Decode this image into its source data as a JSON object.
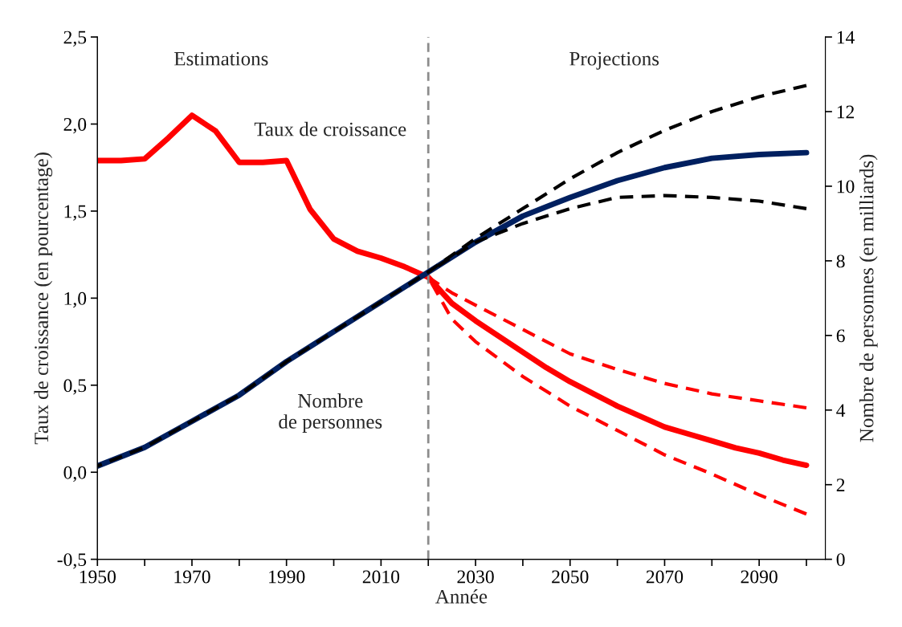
{
  "chart_data": {
    "type": "line",
    "xlabel": "Année",
    "ylabel": "Taux de croissance (en pourcentage)",
    "y2label": "Nombre de personnes (en milliards)",
    "xlim": [
      1950,
      2104
    ],
    "xticks": [
      1950,
      {
        "value": 1960,
        "label": null
      },
      1970,
      {
        "value": 1980,
        "label": null
      },
      1990,
      {
        "value": 2000,
        "label": null
      },
      2010,
      {
        "value": 2020,
        "label": null
      },
      2030,
      {
        "value": 2040,
        "label": null
      },
      2050,
      {
        "value": 2060,
        "label": null
      },
      2070,
      {
        "value": 2080,
        "label": null
      },
      2090,
      {
        "value": 2100,
        "label": null
      }
    ],
    "ylim": [
      -0.5,
      2.5
    ],
    "yticks": [
      {
        "value": -0.5,
        "label": "-0,5"
      },
      {
        "value": 0,
        "label": "0,0"
      },
      {
        "value": 0.5,
        "label": "0,5"
      },
      {
        "value": 1,
        "label": "1,0"
      },
      {
        "value": 1.5,
        "label": "1,5"
      },
      {
        "value": 2,
        "label": "2,0"
      },
      {
        "value": 2.5,
        "label": "2,5"
      }
    ],
    "y2lim": [
      0,
      14
    ],
    "y2ticks": [
      0,
      2,
      4,
      6,
      8,
      10,
      12,
      14
    ],
    "grid": false,
    "legend": false,
    "series": [
      {
        "color": "#ff0000",
        "line_style": "solid",
        "x": [
          1950,
          1955,
          1960,
          1965,
          1970,
          1975,
          1980,
          1985,
          1990,
          1995,
          2000,
          2005,
          2010,
          2015,
          2020,
          2025,
          2030,
          2035,
          2040,
          2045,
          2050,
          2055,
          2060,
          2065,
          2070,
          2075,
          2080,
          2085,
          2090,
          2095,
          2100
        ],
        "values": [
          1.79,
          1.79,
          1.8,
          1.92,
          2.05,
          1.96,
          1.78,
          1.78,
          1.79,
          1.51,
          1.34,
          1.27,
          1.23,
          1.18,
          1.12,
          0.97,
          0.87,
          0.78,
          0.69,
          0.6,
          0.52,
          0.45,
          0.38,
          0.32,
          0.26,
          0.22,
          0.18,
          0.14,
          0.11,
          0.07,
          0.04
        ]
      },
      {
        "color": "#ff0000",
        "line_style": "dashed",
        "x": [
          2020,
          2025,
          2030,
          2040,
          2050,
          2060,
          2070,
          2080,
          2090,
          2100
        ],
        "values": [
          1.12,
          1.03,
          0.96,
          0.82,
          0.68,
          0.59,
          0.51,
          0.45,
          0.41,
          0.37
        ]
      },
      {
        "color": "#ff0000",
        "line_style": "dashed",
        "x": [
          2020,
          2025,
          2030,
          2040,
          2050,
          2060,
          2070,
          2080,
          2090,
          2100
        ],
        "values": [
          1.12,
          0.88,
          0.75,
          0.55,
          0.38,
          0.24,
          0.1,
          -0.01,
          -0.13,
          -0.24
        ]
      },
      {
        "color": "#002060",
        "line_style": "solid",
        "axis": "y2",
        "x": [
          1950,
          1960,
          1970,
          1980,
          1990,
          2000,
          2010,
          2020,
          2030,
          2040,
          2050,
          2060,
          2070,
          2080,
          2090,
          2100
        ],
        "values": [
          2.5,
          3.0,
          3.7,
          4.4,
          5.3,
          6.1,
          6.9,
          7.7,
          8.5,
          9.2,
          9.7,
          10.15,
          10.5,
          10.75,
          10.85,
          10.9
        ]
      },
      {
        "color": "#000000",
        "line_style": "dashed",
        "axis": "y2",
        "x": [
          1950,
          1960,
          1970,
          1980,
          1990,
          2000,
          2010,
          2020,
          2030,
          2040,
          2050,
          2060,
          2070,
          2080,
          2090,
          2100
        ],
        "values": [
          2.5,
          3.0,
          3.7,
          4.4,
          5.3,
          6.1,
          6.9,
          7.7,
          8.6,
          9.4,
          10.2,
          10.9,
          11.5,
          12.0,
          12.4,
          12.7
        ]
      },
      {
        "color": "#000000",
        "line_style": "dashed",
        "axis": "y2",
        "x": [
          2020,
          2030,
          2040,
          2050,
          2060,
          2070,
          2080,
          2090,
          2100
        ],
        "values": [
          7.7,
          8.5,
          9.0,
          9.4,
          9.7,
          9.75,
          9.7,
          9.6,
          9.4
        ]
      }
    ],
    "ref_lines": [
      {
        "axis": "x",
        "value": 2020,
        "color": "#8c8c8c",
        "line_style": "dashed"
      }
    ],
    "annotations": [
      "Estimations",
      "Projections",
      "Taux de croissance",
      "Nombre\nde personnes"
    ]
  }
}
